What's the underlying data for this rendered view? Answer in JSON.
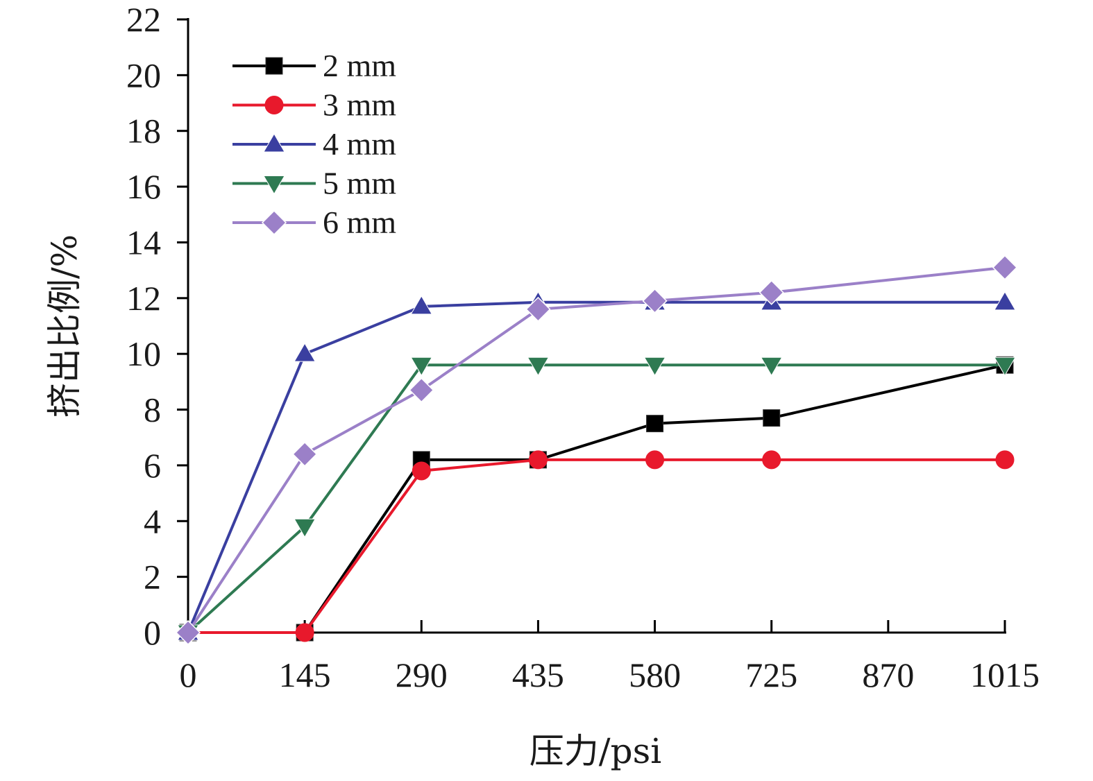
{
  "chart_data": {
    "type": "line",
    "xlabel": "压力/psi",
    "ylabel": "挤出比例/%",
    "x_ticks": [
      "0",
      "145",
      "290",
      "435",
      "580",
      "725",
      "870",
      "1015"
    ],
    "y_ticks": [
      "0",
      "2",
      "4",
      "6",
      "8",
      "10",
      "12",
      "14",
      "16",
      "18",
      "20",
      "22"
    ],
    "xlim": [
      0,
      1015
    ],
    "ylim": [
      0,
      22
    ],
    "grid": false,
    "legend_position": "top-left",
    "series": [
      {
        "name": "2 mm",
        "color": "#000000",
        "marker": "square",
        "x": [
          0,
          145,
          290,
          435,
          580,
          725,
          1015
        ],
        "y": [
          0,
          0,
          6.2,
          6.2,
          7.5,
          7.7,
          9.6
        ]
      },
      {
        "name": "3 mm",
        "color": "#e8192c",
        "marker": "circle",
        "x": [
          0,
          145,
          290,
          435,
          580,
          725,
          1015
        ],
        "y": [
          0,
          0,
          5.8,
          6.2,
          6.2,
          6.2,
          6.2
        ]
      },
      {
        "name": "4 mm",
        "color": "#3a3fa0",
        "marker": "triangle-up",
        "x": [
          0,
          145,
          290,
          435,
          580,
          725,
          1015
        ],
        "y": [
          0,
          10.0,
          11.7,
          11.85,
          11.85,
          11.85,
          11.85
        ]
      },
      {
        "name": "5 mm",
        "color": "#2e7a52",
        "marker": "triangle-down",
        "x": [
          0,
          145,
          290,
          435,
          580,
          725,
          1015
        ],
        "y": [
          0,
          3.8,
          9.6,
          9.6,
          9.6,
          9.6,
          9.6
        ]
      },
      {
        "name": "6 mm",
        "color": "#9b80c8",
        "marker": "diamond",
        "x": [
          0,
          145,
          290,
          435,
          580,
          725,
          1015
        ],
        "y": [
          0,
          6.4,
          8.7,
          11.6,
          11.9,
          12.2,
          13.1
        ]
      }
    ]
  }
}
